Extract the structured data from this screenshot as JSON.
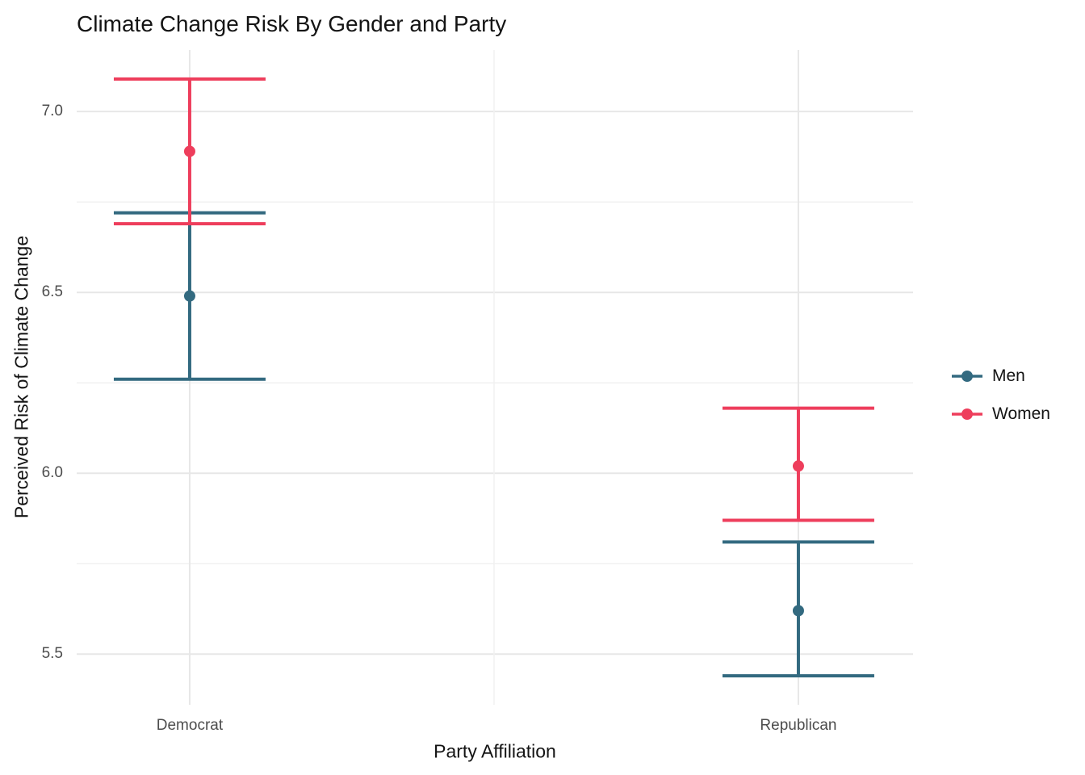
{
  "title": "Climate Change Risk By Gender and Party",
  "colors": {
    "men": "#336A80",
    "women": "#EE3E5C",
    "grid_major": "#E7E7E7",
    "grid_minor": "#F1F1F1",
    "tick_text": "#4D4D4D",
    "title_text": "#141414"
  },
  "legend": {
    "items": [
      {
        "label": "Men",
        "color": "#336A80"
      },
      {
        "label": "Women",
        "color": "#EE3E5C"
      }
    ]
  },
  "chart_data": {
    "type": "errorbar",
    "title": "Climate Change Risk By Gender and Party",
    "xlabel": "Party Affiliation",
    "ylabel": "Perceived Risk of Climate Change",
    "categories": [
      "Democrat",
      "Republican"
    ],
    "series": [
      {
        "name": "Men",
        "color": "#336A80",
        "means": [
          6.49,
          5.62
        ],
        "ci_low": [
          6.26,
          5.44
        ],
        "ci_high": [
          6.72,
          5.81
        ]
      },
      {
        "name": "Women",
        "color": "#EE3E5C",
        "means": [
          6.89,
          6.02
        ],
        "ci_low": [
          6.69,
          5.87
        ],
        "ci_high": [
          7.09,
          6.18
        ]
      }
    ],
    "ylim": [
      5.36,
      7.17
    ],
    "yticks": [
      5.5,
      6.0,
      6.5,
      7.0
    ],
    "ytick_labels": [
      "5.5",
      "6.0",
      "6.5",
      "7.0"
    ],
    "yticks_minor": [
      5.75,
      6.25,
      6.75
    ],
    "grid": true,
    "legend_position": "right"
  }
}
